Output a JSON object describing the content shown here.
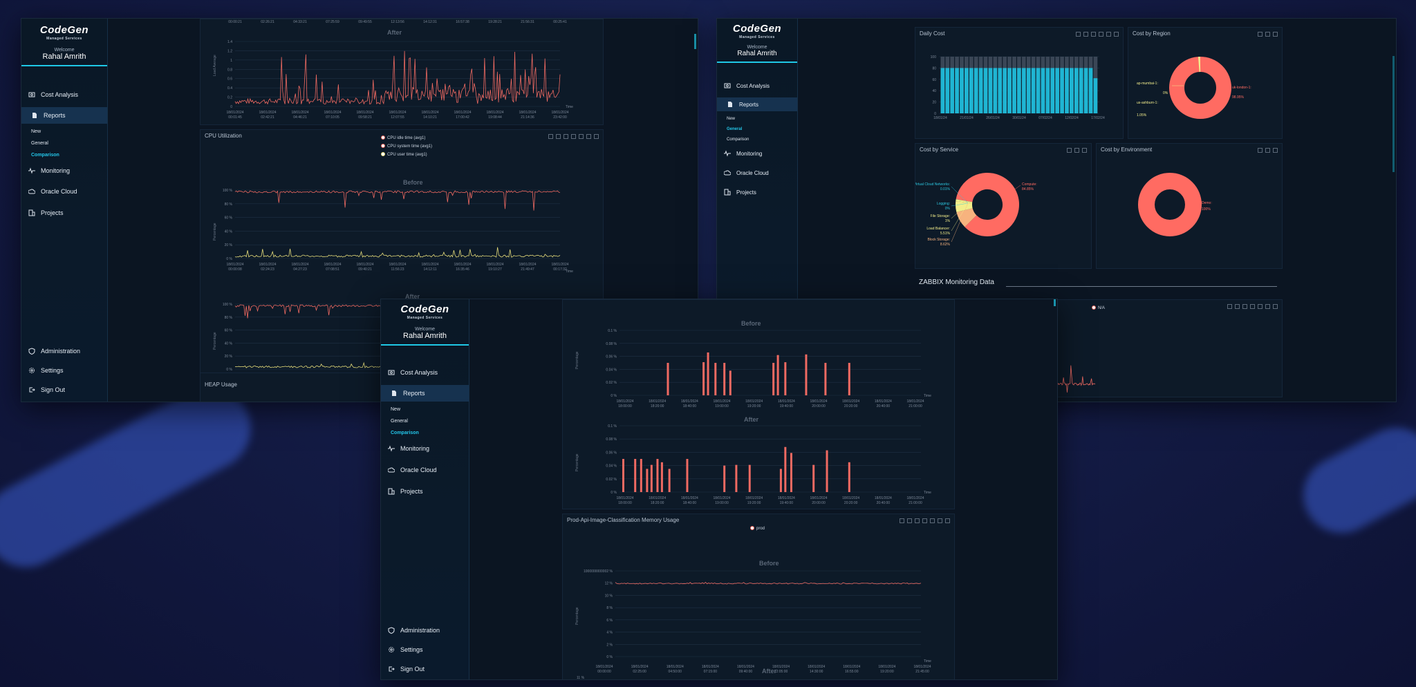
{
  "brand": {
    "name": "CodeGen",
    "tagline": "Managed Services"
  },
  "user": {
    "welcome": "Welcome",
    "name": "Rahal Amrith"
  },
  "nav": {
    "cost_analysis": "Cost Analysis",
    "reports": "Reports",
    "sub_new": "New",
    "sub_general": "General",
    "sub_comparison": "Comparison",
    "monitoring": "Monitoring",
    "oracle_cloud": "Oracle Cloud",
    "projects": "Projects",
    "administration": "Administration",
    "settings": "Settings",
    "sign_out": "Sign Out"
  },
  "panel_left": {
    "load_average": {
      "after_label": "After",
      "y_title": "Load Average",
      "y_ticks": [
        "1.4",
        "1.2",
        "1",
        "0.8",
        "0.6",
        "0.4",
        "0.2",
        "0"
      ],
      "top_ticks": [
        "00:00:21",
        "02:26:21",
        "04:33:21",
        "07:25:59",
        "09:49:55",
        "12:13:56",
        "14:12:31",
        "16:57:38",
        "19:28:21",
        "21:56:31",
        "00:25:41"
      ],
      "x_ticks": [
        "18/01/2024\n00:01:45",
        "18/01/2024\n02:42:21",
        "18/01/2024\n04:46:21",
        "18/01/2024\n07:10:05",
        "18/01/2024\n09:58:21",
        "18/01/2024\n12:07:55",
        "18/01/2024\n14:10:21",
        "18/01/2024\n17:00:42",
        "18/01/2024\n19:08:44",
        "18/01/2024\n21:14:36",
        "18/01/2024\n23:42:00"
      ],
      "time_label": "Time"
    },
    "cpu": {
      "title": "CPU Utilization",
      "legend": [
        "CPU idle time (avg1)",
        "CPU system time (avg1)",
        "CPU user time (avg1)"
      ],
      "before_label": "Before",
      "after_label": "After",
      "y_title": "Percentage",
      "y_ticks": [
        "100 %",
        "80 %",
        "60 %",
        "40 %",
        "20 %",
        "0 %"
      ],
      "x_ticks_before": [
        "18/01/2024\n00:00:08",
        "18/01/2024\n02:24:23",
        "18/01/2024\n04:27:23",
        "18/01/2024\n07:08:51",
        "18/01/2024\n09:40:21",
        "18/01/2024\n11:56:23",
        "18/01/2024\n14:12:11",
        "18/01/2024\n16:35:46",
        "18/01/2024\n19:10:27",
        "18/01/2024\n21:49:47",
        "18/01/2024\n00:17:32"
      ],
      "x_ticks_after": [
        "18/01/2024\n00:01:49",
        "18/01/2024\n02:30:47",
        "18/01/2024\n04:30:28",
        "18/01/2024\n07:24:36",
        "18/01/2024\n09:58:21"
      ],
      "time_label": "Time"
    },
    "heap": {
      "title": "HEAP Usage"
    }
  },
  "panel_right": {
    "daily_cost": {
      "title": "Daily Cost",
      "y_ticks": [
        "100",
        "80",
        "60",
        "40",
        "20",
        "0"
      ],
      "x_ticks": [
        "18/01/24",
        "21/01/24",
        "26/01/24",
        "30/01/24",
        "07/02/24",
        "12/02/24",
        "17/02/24"
      ]
    },
    "cost_by_region": {
      "title": "Cost by Region",
      "labels": [
        {
          "text": "ap-mumbai-1:",
          "value": "0%",
          "color": "#f1ec8c"
        },
        {
          "text": "us-ashburn-1:",
          "value": "1.05%",
          "color": "#f1ec8c"
        },
        {
          "text": "uk-london-1:",
          "value": "98.95%",
          "color": "#ff6b62"
        }
      ]
    },
    "cost_by_service": {
      "title": "Cost by Service",
      "labels": [
        {
          "text": "Virtual Cloud Networks:",
          "value": "0.01%",
          "color": "#2cc6df"
        },
        {
          "text": "Logging:",
          "value": "0%",
          "color": "#2cc6df"
        },
        {
          "text": "File Storage:",
          "value": "1%",
          "color": "#f3ee8a"
        },
        {
          "text": "Load Balancer:",
          "value": "5.51%",
          "color": "#f3ee8a"
        },
        {
          "text": "Block Storage:",
          "value": "8.62%",
          "color": "#f7b37e"
        },
        {
          "text": "Compute:",
          "value": "84.85%",
          "color": "#ff6b62"
        }
      ]
    },
    "cost_by_environment": {
      "title": "Cost by Environment",
      "labels": [
        {
          "text": "Demo:",
          "value": "100%",
          "color": "#ff6b62"
        }
      ]
    },
    "zabbix": {
      "title": "ZABBIX Monitoring Data",
      "legend": "N/A"
    }
  },
  "panel_center": {
    "memory_before_label": "Before",
    "memory_after_label": "After",
    "y_title": "Percentage",
    "bars_y_ticks": [
      "0.1 %",
      "0.08 %",
      "0.06 %",
      "0.04 %",
      "0.02 %",
      "0 %"
    ],
    "bars_x_ticks_before": [
      "18/01/2024\n18:00:00",
      "18/01/2024\n18:20:00",
      "18/01/2024\n18:40:00",
      "18/01/2024\n19:00:00",
      "18/01/2024\n19:20:00",
      "18/01/2024\n19:40:00",
      "18/01/2024\n20:00:00",
      "18/01/2024\n20:20:00",
      "18/01/2024\n20:40:00",
      "18/01/2024\n21:00:00"
    ],
    "time_label": "Time",
    "prod_title": "Prod-Api-Image-Classification Memory Usage",
    "prod_legend": "prod",
    "prod_y_ticks": [
      "1000000000002 %",
      "12 %",
      "10 %",
      "8 %",
      "6 %",
      "4 %",
      "2 %",
      "0 %"
    ],
    "prod_x_ticks": [
      "18/01/2024\n00:00:00",
      "18/01/2024\n02:25:00",
      "18/01/2024\n04:50:00",
      "18/01/2024\n07:15:00",
      "18/01/2024\n09:40:00",
      "18/01/2024\n12:05:00",
      "18/01/2024\n14:30:00",
      "18/01/2024\n16:55:00",
      "18/01/2024\n19:20:00",
      "18/01/2024\n21:45:00"
    ],
    "prod_after_tick": "11 %"
  },
  "colors": {
    "accent": "#1fc8e6",
    "series_red": "#f06a62",
    "series_yellow": "#e5dc7a",
    "bar_cyan": "#1fb5d3"
  }
}
